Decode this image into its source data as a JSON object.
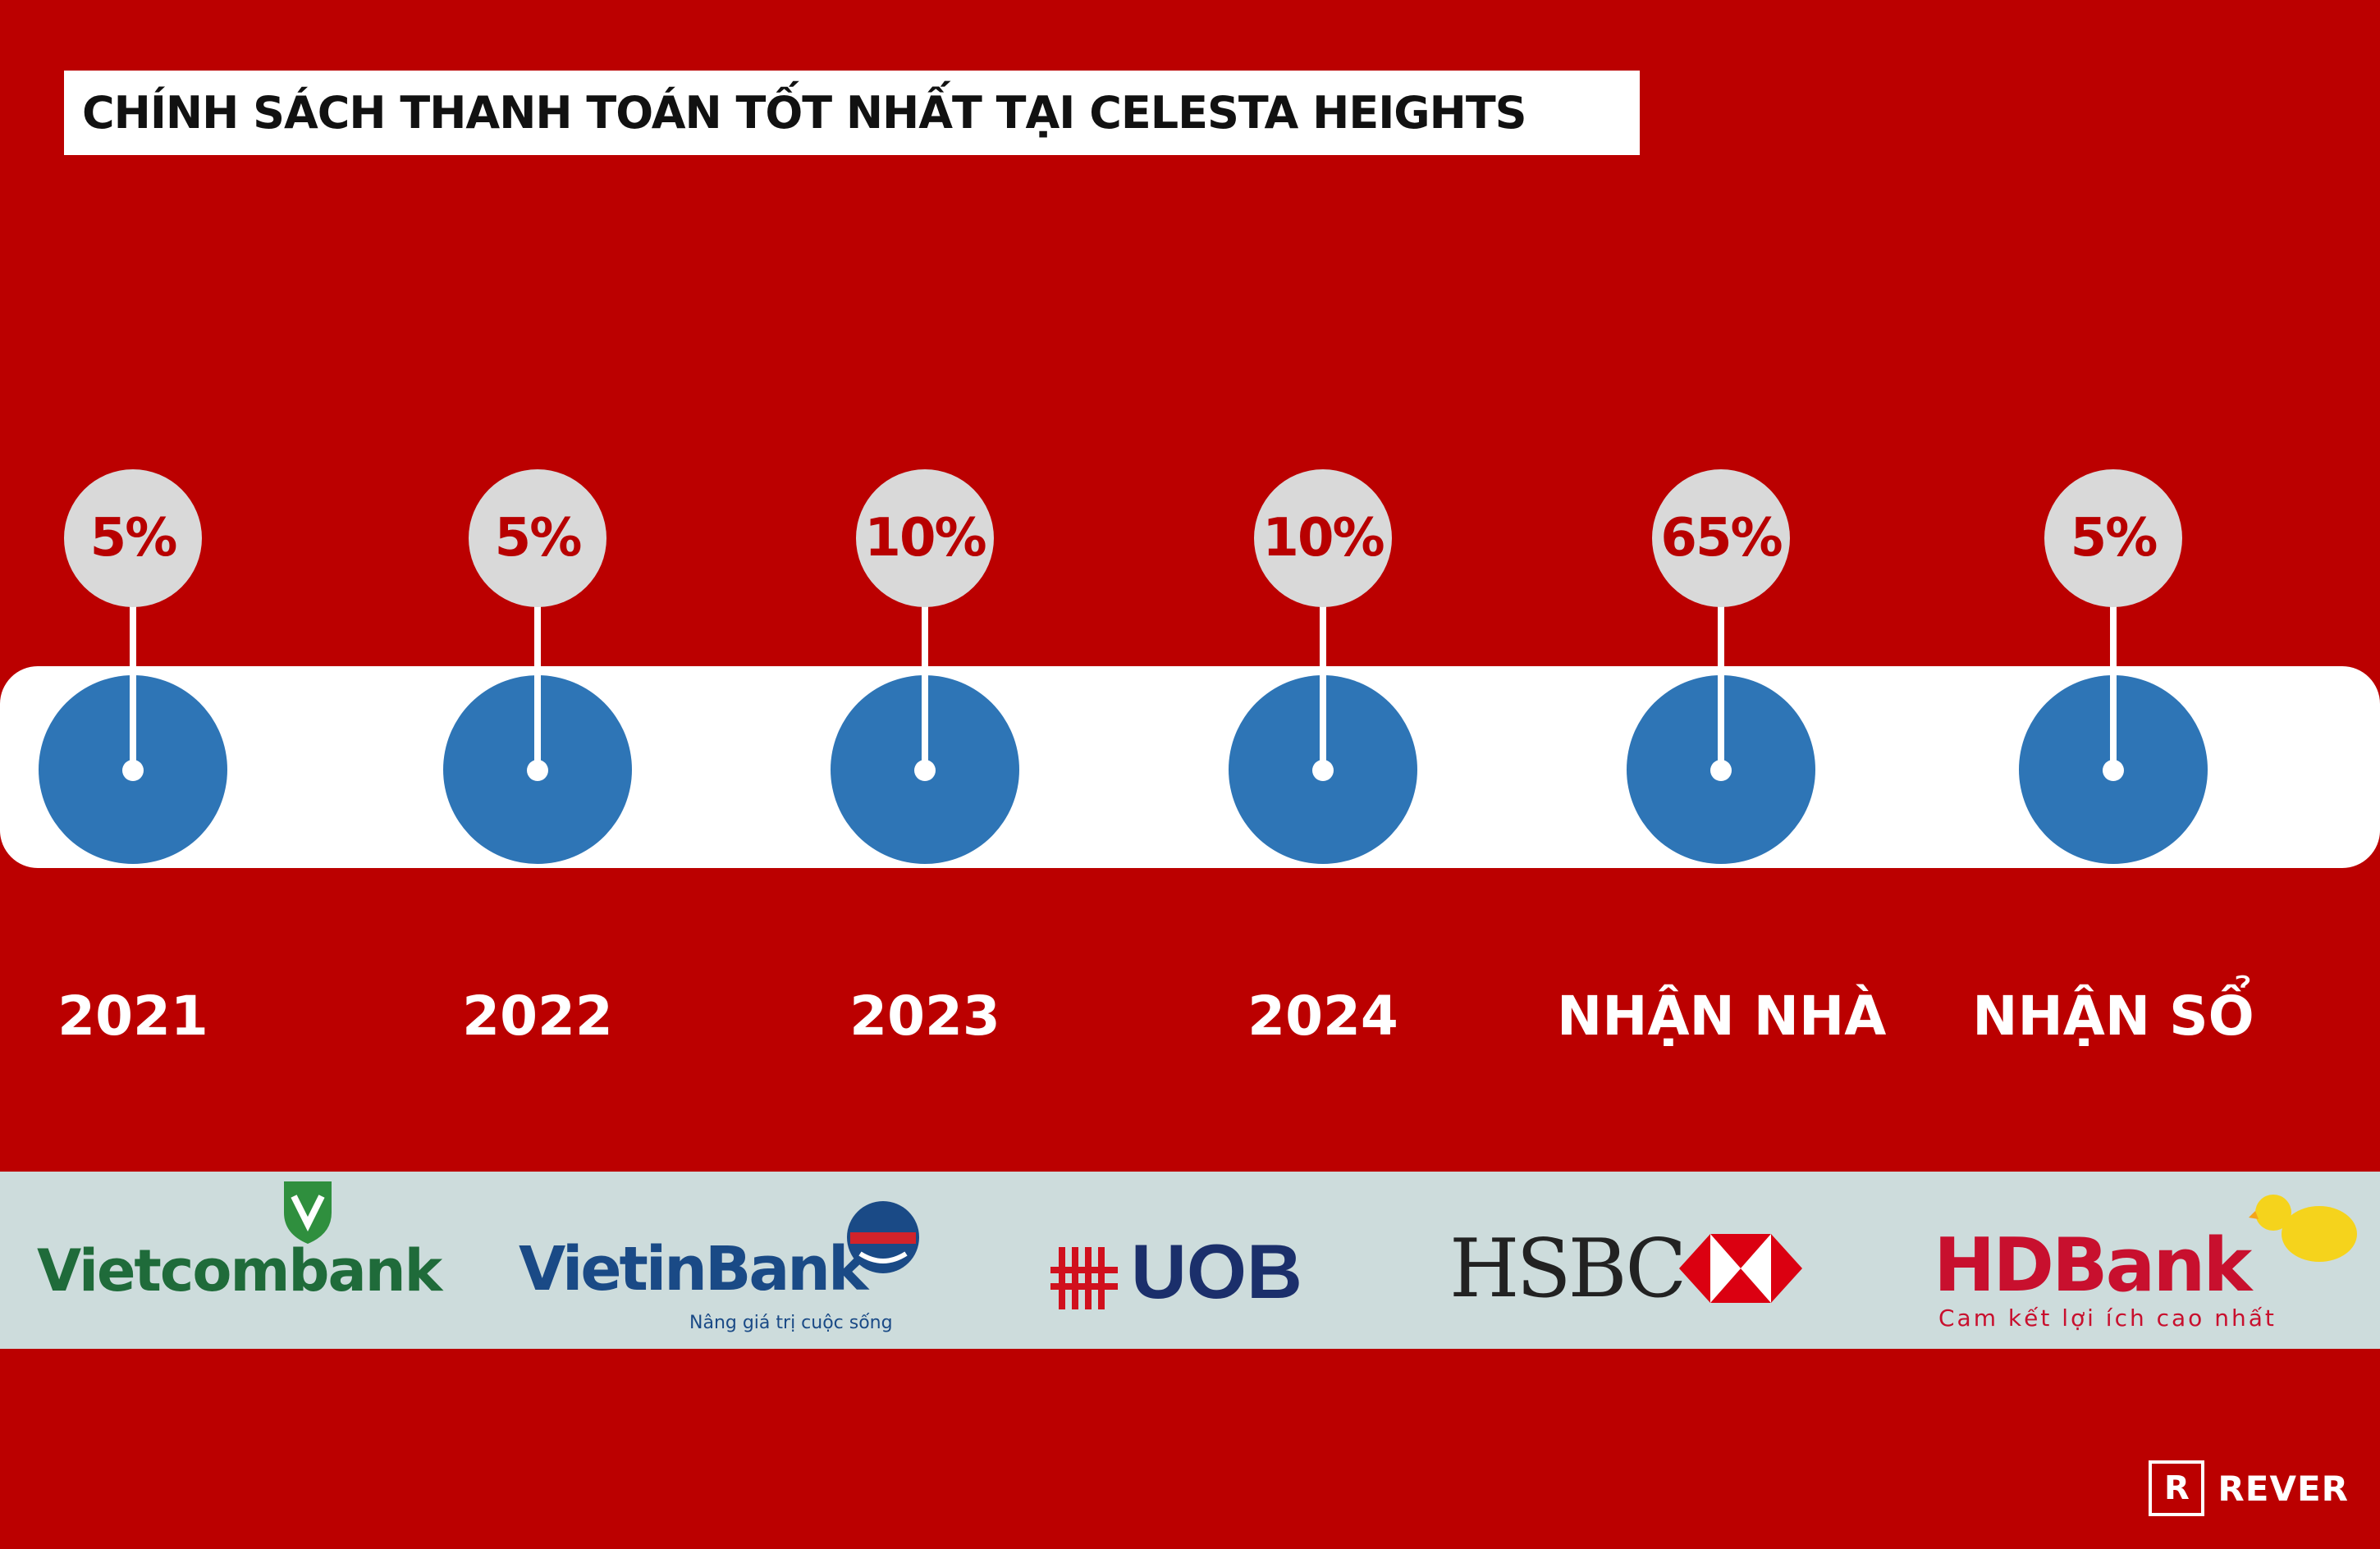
{
  "title": "CHÍNH SÁCH THANH TOÁN TỐT NHẤT TẠI CELESTA HEIGHTS",
  "milestones": [
    {
      "percent": "5%",
      "label": "2021"
    },
    {
      "percent": "5%",
      "label": "2022"
    },
    {
      "percent": "10%",
      "label": "2023"
    },
    {
      "percent": "10%",
      "label": "2024"
    },
    {
      "percent": "65%",
      "label": "NHẬN NHÀ"
    },
    {
      "percent": "5%",
      "label": "NHẬN SỔ"
    }
  ],
  "banks": {
    "vietcombank": {
      "name": "Vietcombank"
    },
    "vietinbank": {
      "name": "VietinBank",
      "tagline": "Nâng giá trị cuộc sống"
    },
    "uob": {
      "name": "UOB"
    },
    "hsbc": {
      "name": "HSBC"
    },
    "hdbank": {
      "name": "HDBank",
      "tagline": "Cam kết lợi ích cao nhất"
    }
  },
  "brand": {
    "mark": "R",
    "name": "REVER"
  },
  "colors": {
    "background": "#bb0000",
    "timeline_node": "#2e75b6",
    "bubble": "#d9d9d9",
    "percent_text": "#b80000",
    "bank_strip": "#cddcdc"
  }
}
